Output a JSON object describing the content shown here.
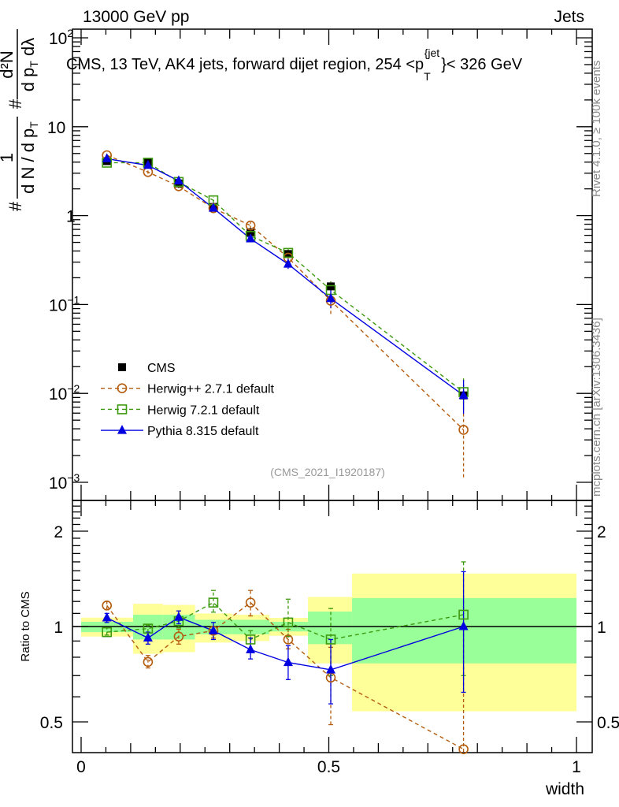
{
  "header": {
    "left": "13000 GeV pp",
    "right": "Jets",
    "side_top": "Rivet 4.1.0, ≥ 100k events",
    "side_bottom": "mcplots.cern.ch [arXiv:1306.3436]"
  },
  "chart_data": {
    "type": "line",
    "title_main": "CMS, 13 TeV, AK4 jets, forward dijet region, 254 <p",
    "title_sub": "T",
    "title_sup": "{jet",
    "title_end": "}< 326 GeV",
    "watermark": "(CMS_2021_I1920187)",
    "ylabel": {
      "hash1": "#",
      "num1": "1",
      "den1": "d N / d p",
      "den1_sub": "T",
      "hash2": "#",
      "num2": "d²N",
      "den2": "d p",
      "den2_sub": "T",
      "den2_end": "dλ"
    },
    "ratio_ylabel": "Ratio to CMS",
    "xlabel": "width",
    "xlim": [
      0,
      1
    ],
    "ylim": [
      0.001,
      150
    ],
    "yscale": "log",
    "ratio_ylim": [
      0.4,
      2.5
    ],
    "x_ticks": [
      "0",
      "0.5",
      "1"
    ],
    "y_ticks": [
      {
        "base": "10",
        "exp": "2",
        "value": 100
      },
      {
        "base": "10",
        "exp": "",
        "value": 10
      },
      {
        "base": "1",
        "exp": "",
        "value": 1
      },
      {
        "base": "10",
        "exp": "−1",
        "value": 0.1
      },
      {
        "base": "10",
        "exp": "−2",
        "value": 0.01
      },
      {
        "base": "10",
        "exp": "−3",
        "value": 0.001
      }
    ],
    "ratio_ticks": [
      "2",
      "1",
      "0.5"
    ],
    "ratio_tick_values": [
      2,
      1,
      0.5
    ],
    "bin_edges": [
      0,
      0.105,
      0.165,
      0.23,
      0.305,
      0.38,
      0.458,
      0.547,
      1.0
    ],
    "x": [
      0.052,
      0.135,
      0.197,
      0.267,
      0.342,
      0.418,
      0.504,
      0.772
    ],
    "band_inner": [
      [
        0.96,
        1.035
      ],
      [
        0.91,
        1.09
      ],
      [
        0.91,
        1.09
      ],
      [
        0.945,
        1.05
      ],
      [
        0.945,
        1.05
      ],
      [
        0.965,
        1.035
      ],
      [
        0.88,
        1.115
      ],
      [
        0.765,
        1.23
      ]
    ],
    "band_outer": [
      [
        0.93,
        1.067
      ],
      [
        0.82,
        1.18
      ],
      [
        0.83,
        1.17
      ],
      [
        0.89,
        1.1
      ],
      [
        0.9,
        1.09
      ],
      [
        0.935,
        1.065
      ],
      [
        0.765,
        1.24
      ],
      [
        0.54,
        1.47
      ]
    ],
    "series": [
      {
        "name": "CMS",
        "color": "#000000",
        "marker": "square-filled",
        "line": "none",
        "values": [
          4.1,
          4.0,
          2.3,
          1.25,
          0.65,
          0.37,
          0.16,
          0.0095
        ]
      },
      {
        "name": "Herwig++ 2.7.1 default",
        "color": "#b35c0e",
        "marker": "circle-open",
        "line": "dashed",
        "ratio": [
          1.165,
          0.773,
          0.93,
          0.97,
          1.19,
          0.91,
          0.69,
          0.41
        ],
        "ratio_err": [
          [
            1.13,
            1.2
          ],
          [
            0.74,
            0.81
          ],
          [
            0.88,
            0.98
          ],
          [
            0.92,
            1.0
          ],
          [
            1.08,
            1.3
          ],
          [
            0.85,
            0.98
          ],
          [
            0.49,
            0.86
          ],
          [
            0.12,
            1.0
          ]
        ]
      },
      {
        "name": "Herwig 7.2.1 default",
        "color": "#3d9a0e",
        "marker": "square-open",
        "line": "dashed",
        "ratio": [
          0.96,
          0.985,
          1.04,
          1.19,
          0.91,
          1.03,
          0.91,
          1.09
        ],
        "ratio_err": [
          [
            0.94,
            0.99
          ],
          [
            0.96,
            1.01
          ],
          [
            0.99,
            1.08
          ],
          [
            1.11,
            1.3
          ],
          [
            0.84,
            0.97
          ],
          [
            0.93,
            1.22
          ],
          [
            0.7,
            1.14
          ],
          [
            0.7,
            1.6
          ]
        ]
      },
      {
        "name": "Pythia 8.315 default",
        "color": "#0000e0",
        "marker": "triangle-filled",
        "line": "solid",
        "ratio": [
          1.065,
          0.92,
          1.07,
          0.97,
          0.845,
          0.77,
          0.73,
          1.0
        ],
        "ratio_err": [
          [
            1.03,
            1.1
          ],
          [
            0.88,
            0.96
          ],
          [
            1.02,
            1.12
          ],
          [
            0.91,
            1.03
          ],
          [
            0.79,
            0.92
          ],
          [
            0.68,
            0.87
          ],
          [
            0.57,
            0.91
          ],
          [
            0.62,
            1.49
          ]
        ]
      }
    ],
    "colors": {
      "band_inner": "#99ff99",
      "band_outer": "#ffff99"
    },
    "legend_position": "bottom-left"
  }
}
